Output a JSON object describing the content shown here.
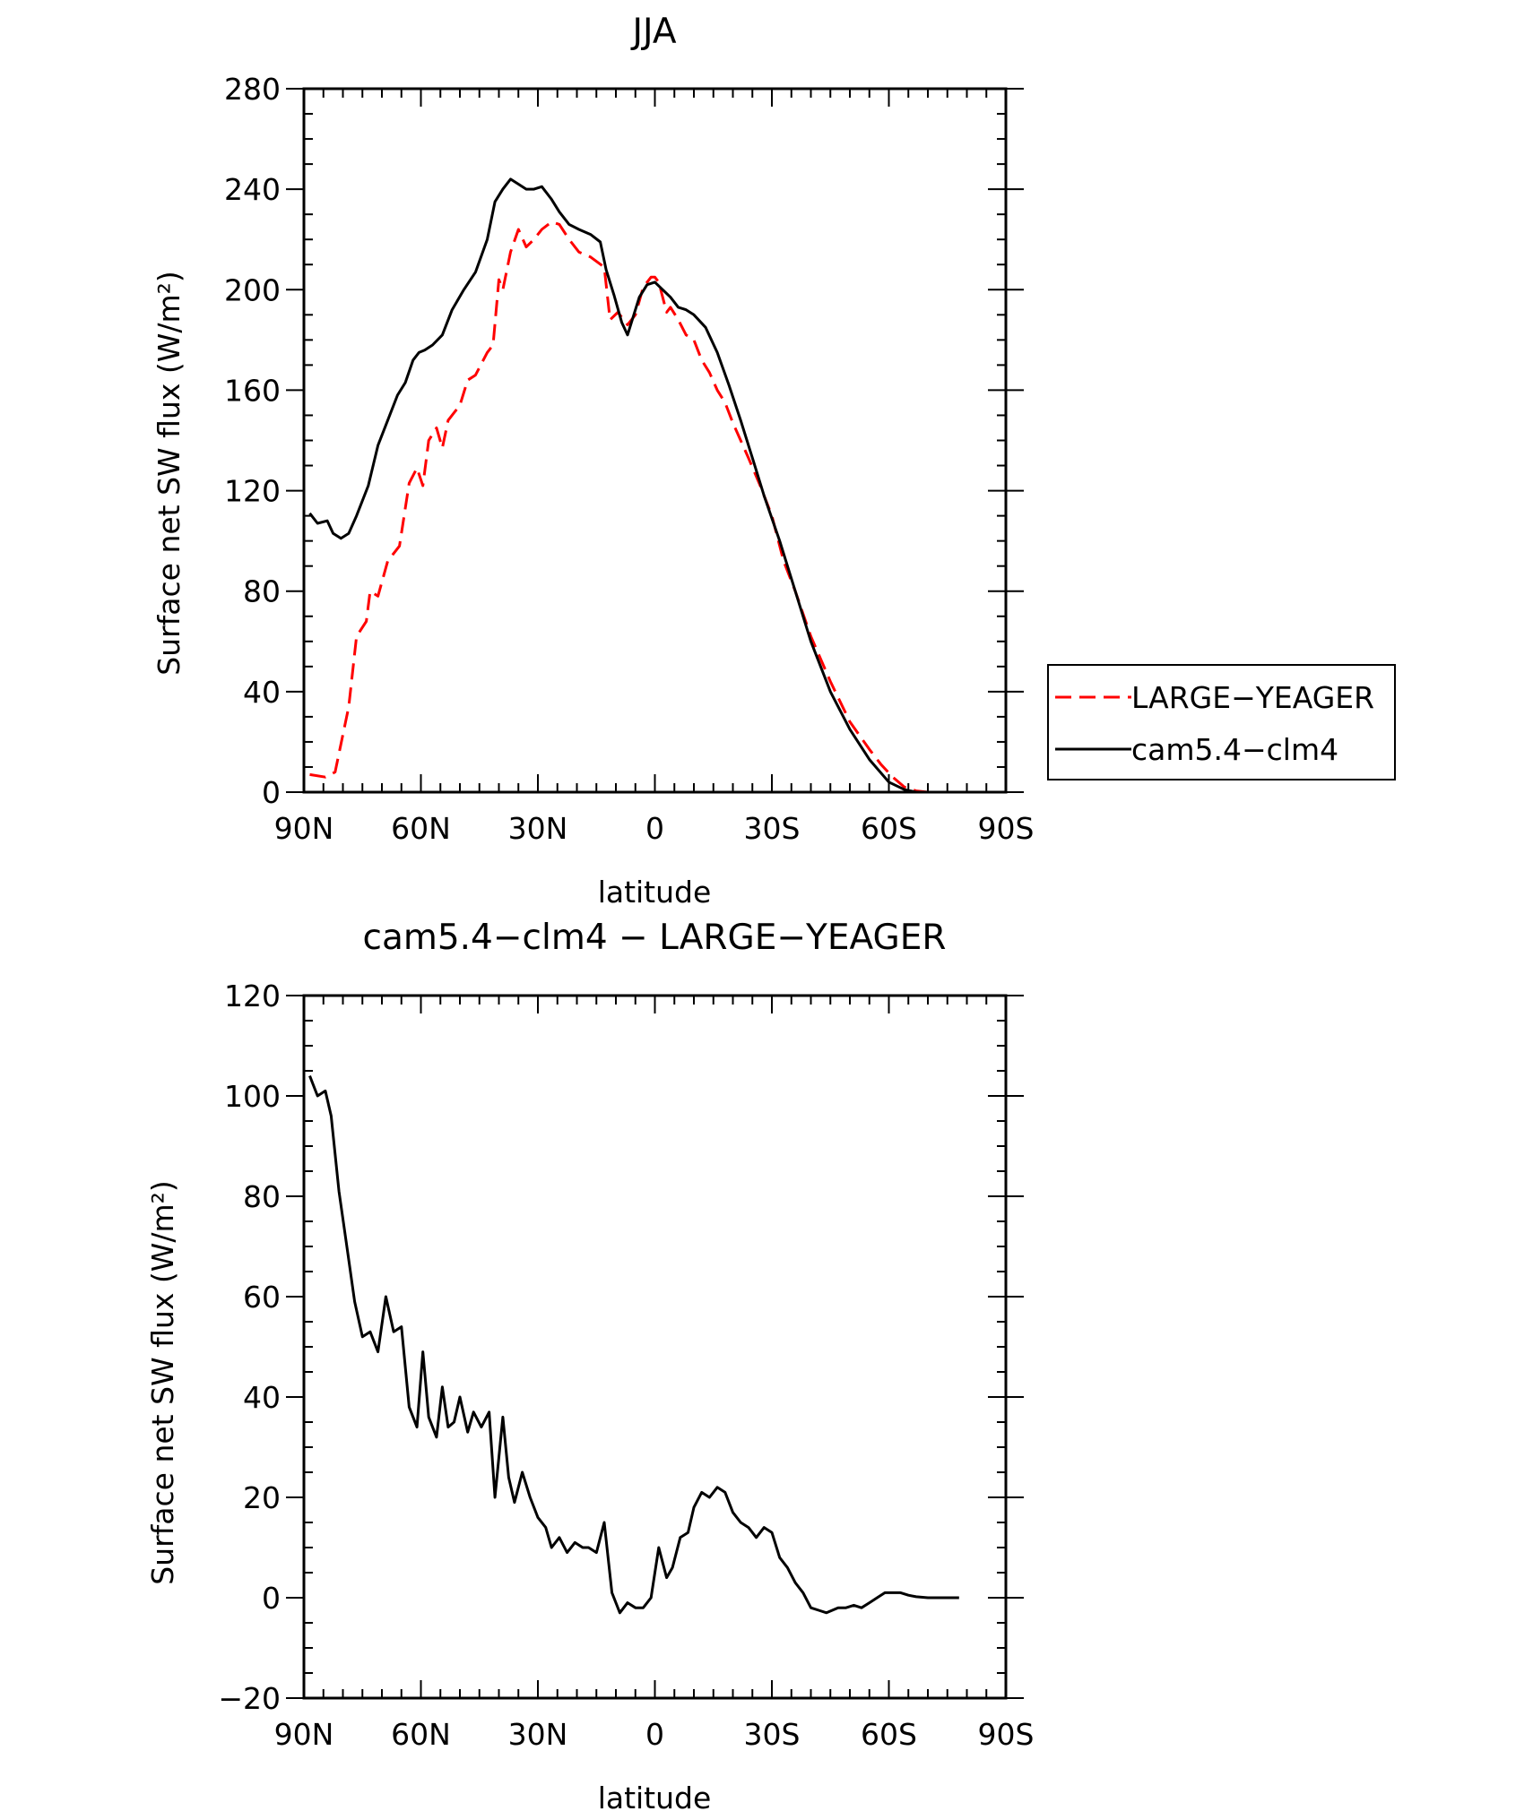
{
  "chart_data": [
    {
      "type": "line",
      "title": "JJA",
      "xlabel": "latitude",
      "ylabel": "Surface net SW flux (W/m²)",
      "xlim": [
        90,
        -90
      ],
      "ylim": [
        0,
        280
      ],
      "x_ticks": [
        90,
        60,
        30,
        0,
        -30,
        -60,
        -90
      ],
      "x_tick_labels": [
        "90N",
        "60N",
        "30N",
        "0",
        "30S",
        "60S",
        "90S"
      ],
      "y_ticks": [
        0,
        40,
        80,
        120,
        160,
        200,
        240,
        280
      ],
      "y_tick_labels": [
        "0",
        "40",
        "80",
        "120",
        "160",
        "200",
        "240",
        "280"
      ],
      "legend": {
        "placement": "right",
        "entries": [
          "LARGE−YEAGER",
          "cam5.4−clm4"
        ]
      },
      "series": [
        {
          "name": "LARGE−YEAGER",
          "color": "#ff0000",
          "style": "dashed",
          "x": [
            88.5,
            84.5,
            82,
            78.5,
            76.5,
            74,
            73,
            71,
            68.5,
            65.5,
            63,
            61,
            59.5,
            58,
            56,
            54.5,
            53,
            50,
            48,
            46,
            43,
            41.5,
            40,
            39,
            37,
            35,
            33,
            31,
            29,
            26.5,
            24.5,
            22,
            19.5,
            16.5,
            13,
            11.5,
            9.5,
            7,
            5,
            3,
            1,
            0,
            -1,
            -3,
            -4,
            -6,
            -8,
            -10,
            -12,
            -14,
            -16,
            -18,
            -20,
            -22,
            -24,
            -27,
            -30,
            -33,
            -36,
            -40,
            -45,
            -50,
            -55,
            -58,
            -61,
            -64,
            -67,
            -70,
            -75,
            -80,
            -85,
            -90
          ],
          "y": [
            7,
            6,
            8,
            34,
            62,
            68,
            80,
            78,
            92,
            98,
            123,
            129,
            122,
            140,
            145,
            137,
            148,
            154,
            164,
            166,
            175,
            178,
            204,
            200,
            215,
            224,
            217,
            220,
            224,
            227,
            226,
            220,
            215,
            213,
            209,
            188,
            191,
            186,
            190,
            201,
            205,
            205,
            203,
            191,
            193,
            188,
            182,
            180,
            172,
            167,
            160,
            155,
            147,
            140,
            133,
            122,
            110,
            92,
            80,
            62,
            44,
            28,
            17,
            11,
            6,
            2,
            0.5,
            0,
            0,
            0,
            0,
            0
          ]
        },
        {
          "name": "cam5.4−clm4",
          "color": "#000000",
          "style": "solid",
          "x": [
            88.5,
            86.5,
            84,
            82.5,
            80.5,
            78.5,
            76.5,
            73.5,
            71,
            68.5,
            66,
            64,
            62,
            60.5,
            59,
            57,
            54.5,
            52,
            49,
            46,
            43,
            41,
            39,
            37,
            35,
            33,
            31,
            29,
            26.5,
            24.5,
            22,
            19.5,
            16.5,
            14,
            12.5,
            10.5,
            8.5,
            7,
            6,
            4,
            2,
            0,
            -2,
            -4,
            -6,
            -8,
            -10,
            -13,
            -16,
            -19,
            -22,
            -25,
            -28,
            -32,
            -36,
            -40,
            -45,
            -50,
            -55,
            -60,
            -64,
            -67,
            -70,
            -75,
            -80,
            -85,
            -90
          ],
          "y": [
            111,
            107,
            108,
            103,
            101,
            103,
            110,
            122,
            138,
            148,
            158,
            163,
            172,
            175,
            176,
            178,
            182,
            192,
            200,
            207,
            220,
            235,
            240,
            244,
            242,
            240,
            240,
            241,
            236,
            231,
            226,
            224,
            222,
            219,
            208,
            198,
            187,
            182,
            187,
            197,
            202,
            203,
            200,
            197,
            193,
            192,
            190,
            185,
            175,
            162,
            148,
            133,
            118,
            100,
            80,
            60,
            40,
            25,
            13,
            4,
            1,
            0,
            0,
            0,
            0,
            0,
            0
          ]
        }
      ]
    },
    {
      "type": "line",
      "title": "cam5.4−clm4 − LARGE−YEAGER",
      "xlabel": "latitude",
      "ylabel": "Surface net SW flux (W/m²)",
      "xlim": [
        90,
        -90
      ],
      "ylim": [
        -20,
        120
      ],
      "x_ticks": [
        90,
        60,
        30,
        0,
        -30,
        -60,
        -90
      ],
      "x_tick_labels": [
        "90N",
        "60N",
        "30N",
        "0",
        "30S",
        "60S",
        "90S"
      ],
      "y_ticks": [
        -20,
        0,
        20,
        40,
        60,
        80,
        100,
        120
      ],
      "y_tick_labels": [
        "−20",
        "0",
        "20",
        "40",
        "60",
        "80",
        "100",
        "120"
      ],
      "series": [
        {
          "color": "#000000",
          "style": "solid",
          "x": [
            88.5,
            86.5,
            84.5,
            83,
            81,
            79,
            77,
            75,
            73,
            71,
            69,
            67,
            65,
            63,
            61,
            59.5,
            58,
            56,
            54.5,
            53,
            51.5,
            50,
            48,
            46.5,
            44.5,
            42.5,
            41,
            39,
            37.5,
            36,
            34,
            32,
            30,
            28,
            26.5,
            24.5,
            22.5,
            20.5,
            18.5,
            17,
            15,
            13,
            11,
            9,
            7,
            5,
            3,
            1,
            -1,
            -3,
            -4.5,
            -6.5,
            -8.5,
            -10,
            -12,
            -14,
            -16,
            -18,
            -20,
            -22,
            -24,
            -26,
            -28,
            -30,
            -32,
            -34,
            -36,
            -38,
            -40,
            -42,
            -44,
            -47,
            -49,
            -51,
            -53,
            -55,
            -57,
            -59,
            -61,
            -63,
            -65,
            -67,
            -70,
            -75,
            -78
          ],
          "y": [
            104,
            100,
            101,
            96,
            81,
            70,
            59,
            52,
            53,
            49,
            60,
            53,
            54,
            38,
            34,
            49,
            36,
            32,
            42,
            34,
            35,
            40,
            33,
            37,
            34,
            37,
            20,
            36,
            24,
            19,
            25,
            20,
            16,
            14,
            10,
            12,
            9,
            11,
            10,
            10,
            9,
            15,
            1,
            -3,
            -1,
            -2,
            -2,
            0,
            10,
            4,
            6,
            12,
            13,
            18,
            21,
            20,
            22,
            21,
            17,
            15,
            14,
            12,
            14,
            13,
            8,
            6,
            3,
            1,
            -2,
            -2.5,
            -3,
            -2,
            -2,
            -1.5,
            -2,
            -1,
            0,
            1,
            1,
            1,
            0.5,
            0.2,
            0,
            0,
            0
          ]
        }
      ]
    }
  ]
}
